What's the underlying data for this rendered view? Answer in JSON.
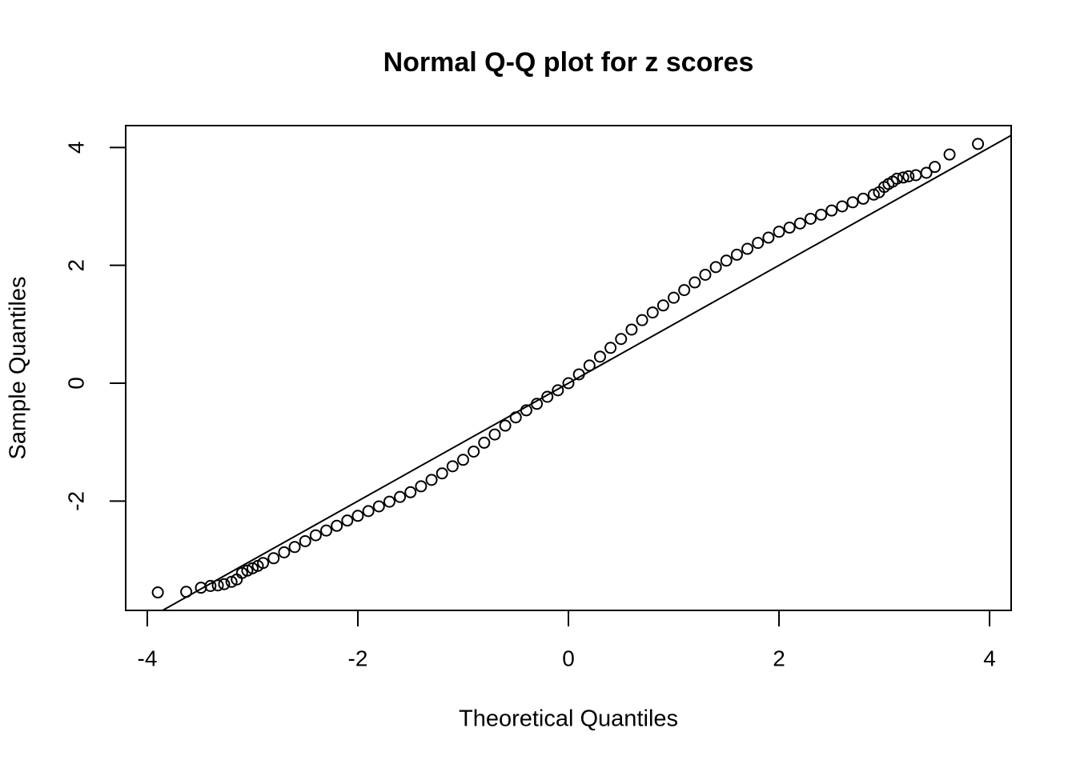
{
  "chart_data": {
    "type": "scatter",
    "title": "Normal Q-Q plot for z scores",
    "xlabel": "Theoretical Quantiles",
    "ylabel": "Sample Quantiles",
    "xlim": [
      -4.205,
      4.205
    ],
    "ylim": [
      -3.855,
      4.371
    ],
    "xticks": [
      -4,
      -2,
      0,
      2,
      4
    ],
    "yticks": [
      -2,
      0,
      2,
      4
    ],
    "color": "#000000",
    "ref_line": {
      "slope": 1.0,
      "intercept": 0.0
    },
    "x": [
      -3.9,
      -3.63,
      -3.49,
      -3.4,
      -3.33,
      -3.27,
      -3.2,
      -3.15,
      -3.1,
      -3.05,
      -3.0,
      -2.95,
      -2.9,
      -2.8,
      -2.7,
      -2.6,
      -2.5,
      -2.4,
      -2.3,
      -2.2,
      -2.1,
      -2.0,
      -1.9,
      -1.8,
      -1.7,
      -1.6,
      -1.5,
      -1.4,
      -1.3,
      -1.2,
      -1.1,
      -1.0,
      -0.9,
      -0.8,
      -0.7,
      -0.6,
      -0.5,
      -0.4,
      -0.3,
      -0.2,
      -0.1,
      0,
      0.1,
      0.2,
      0.3,
      0.4,
      0.5,
      0.6,
      0.7,
      0.8,
      0.9,
      1.0,
      1.1,
      1.2,
      1.3,
      1.4,
      1.5,
      1.6,
      1.7,
      1.8,
      1.9,
      2.0,
      2.1,
      2.2,
      2.3,
      2.4,
      2.5,
      2.6,
      2.7,
      2.8,
      2.9,
      2.95,
      3.0,
      3.04,
      3.08,
      3.12,
      3.18,
      3.23,
      3.3,
      3.4,
      3.48,
      3.62,
      3.89
    ],
    "y": [
      -3.55,
      -3.54,
      -3.47,
      -3.44,
      -3.43,
      -3.41,
      -3.37,
      -3.33,
      -3.22,
      -3.18,
      -3.14,
      -3.1,
      -3.05,
      -2.97,
      -2.87,
      -2.78,
      -2.68,
      -2.58,
      -2.5,
      -2.42,
      -2.33,
      -2.25,
      -2.17,
      -2.09,
      -2.01,
      -1.93,
      -1.85,
      -1.75,
      -1.64,
      -1.53,
      -1.41,
      -1.3,
      -1.16,
      -1.01,
      -0.87,
      -0.72,
      -0.58,
      -0.46,
      -0.35,
      -0.23,
      -0.12,
      0,
      0.15,
      0.3,
      0.45,
      0.6,
      0.75,
      0.91,
      1.07,
      1.2,
      1.32,
      1.45,
      1.58,
      1.71,
      1.84,
      1.97,
      2.08,
      2.18,
      2.28,
      2.38,
      2.47,
      2.57,
      2.64,
      2.71,
      2.79,
      2.86,
      2.93,
      3.0,
      3.07,
      3.13,
      3.2,
      3.24,
      3.33,
      3.38,
      3.42,
      3.47,
      3.49,
      3.51,
      3.53,
      3.57,
      3.67,
      3.88,
      4.06
    ]
  }
}
